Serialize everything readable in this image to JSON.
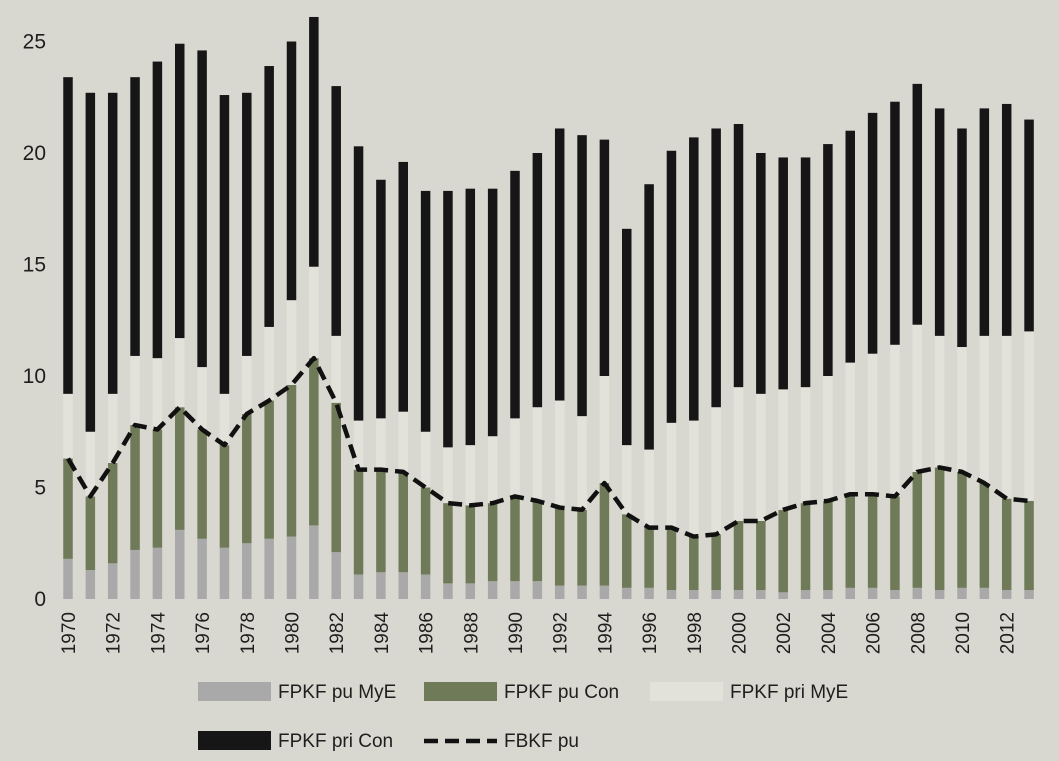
{
  "chart_data": {
    "type": "bar",
    "stacked": true,
    "title": "",
    "xlabel": "",
    "ylabel": "",
    "ylim": [
      0,
      26.5
    ],
    "yticks": [
      0,
      5,
      10,
      15,
      20,
      25
    ],
    "grid": false,
    "legend_position": "bottom",
    "categories": [
      "1970",
      "1971",
      "1972",
      "1973",
      "1974",
      "1975",
      "1976",
      "1977",
      "1978",
      "1979",
      "1980",
      "1981",
      "1982",
      "1983",
      "1984",
      "1985",
      "1986",
      "1987",
      "1988",
      "1989",
      "1990",
      "1991",
      "1992",
      "1993",
      "1994",
      "1995",
      "1996",
      "1997",
      "1998",
      "1999",
      "2000",
      "2001",
      "2002",
      "2003",
      "2004",
      "2005",
      "2006",
      "2007",
      "2008",
      "2009",
      "2010",
      "2011",
      "2012",
      "2013"
    ],
    "x_tick_labels": [
      "1970",
      "1972",
      "1974",
      "1976",
      "1978",
      "1980",
      "1982",
      "1984",
      "1986",
      "1988",
      "1990",
      "1992",
      "1994",
      "1996",
      "1998",
      "2000",
      "2002",
      "2004",
      "2006",
      "2008",
      "2010",
      "2012"
    ],
    "series": [
      {
        "name": "FPKF pu MyE",
        "color": "#a9a9a9",
        "kind": "bar",
        "values": [
          1.8,
          1.3,
          1.6,
          2.2,
          2.3,
          3.1,
          2.7,
          2.3,
          2.5,
          2.7,
          2.8,
          3.3,
          2.1,
          1.1,
          1.2,
          1.2,
          1.1,
          0.7,
          0.7,
          0.8,
          0.8,
          0.8,
          0.6,
          0.6,
          0.6,
          0.5,
          0.5,
          0.4,
          0.4,
          0.4,
          0.4,
          0.4,
          0.3,
          0.4,
          0.4,
          0.5,
          0.5,
          0.4,
          0.5,
          0.4,
          0.5,
          0.5,
          0.4,
          0.4
        ]
      },
      {
        "name": "FPKF pu Con",
        "color": "#6f7a58",
        "kind": "bar",
        "values": [
          4.5,
          3.3,
          4.5,
          5.6,
          5.3,
          5.5,
          4.9,
          4.6,
          5.8,
          6.2,
          6.8,
          7.5,
          6.7,
          4.7,
          4.6,
          4.5,
          3.9,
          3.6,
          3.5,
          3.5,
          3.8,
          3.6,
          3.5,
          3.4,
          4.6,
          3.3,
          2.7,
          2.8,
          2.4,
          2.5,
          3.1,
          3.1,
          3.7,
          3.9,
          4.0,
          4.2,
          4.2,
          4.2,
          5.2,
          5.5,
          5.2,
          4.7,
          4.1,
          4.0
        ]
      },
      {
        "name": "FPKF pri MyE",
        "color": "#e3e2da",
        "kind": "bar",
        "values": [
          2.9,
          2.9,
          3.1,
          3.1,
          3.2,
          3.1,
          2.8,
          2.3,
          2.6,
          3.3,
          3.8,
          4.1,
          3.0,
          2.2,
          2.3,
          2.7,
          2.5,
          2.5,
          2.7,
          3.0,
          3.5,
          4.2,
          4.8,
          4.2,
          4.8,
          3.1,
          3.5,
          4.7,
          5.2,
          5.7,
          6.0,
          5.7,
          5.4,
          5.2,
          5.6,
          5.9,
          6.3,
          6.8,
          6.6,
          5.9,
          5.6,
          6.6,
          7.3,
          7.6
        ]
      },
      {
        "name": "FPKF pri Con",
        "color": "#161616",
        "kind": "bar",
        "values": [
          14.2,
          15.2,
          13.5,
          12.5,
          13.3,
          13.2,
          14.2,
          13.4,
          11.8,
          11.7,
          11.6,
          11.2,
          11.2,
          12.3,
          10.7,
          11.2,
          10.8,
          11.5,
          11.5,
          11.1,
          11.1,
          11.4,
          12.2,
          12.6,
          10.6,
          9.7,
          11.9,
          12.2,
          12.7,
          12.5,
          11.8,
          10.8,
          10.4,
          10.3,
          10.4,
          10.4,
          10.8,
          10.9,
          10.8,
          10.2,
          9.8,
          10.2,
          10.4,
          9.5
        ]
      },
      {
        "name": "FBKF pu",
        "color": "#111111",
        "kind": "line",
        "style": "dashed",
        "values": [
          6.3,
          4.6,
          6.1,
          7.8,
          7.6,
          8.6,
          7.6,
          6.9,
          8.3,
          8.9,
          9.6,
          10.8,
          8.8,
          5.8,
          5.8,
          5.7,
          5.0,
          4.3,
          4.2,
          4.3,
          4.6,
          4.4,
          4.1,
          4.0,
          5.2,
          3.8,
          3.2,
          3.2,
          2.8,
          2.9,
          3.5,
          3.5,
          4.0,
          4.3,
          4.4,
          4.7,
          4.7,
          4.6,
          5.7,
          5.9,
          5.7,
          5.2,
          4.5,
          4.4
        ]
      }
    ]
  }
}
